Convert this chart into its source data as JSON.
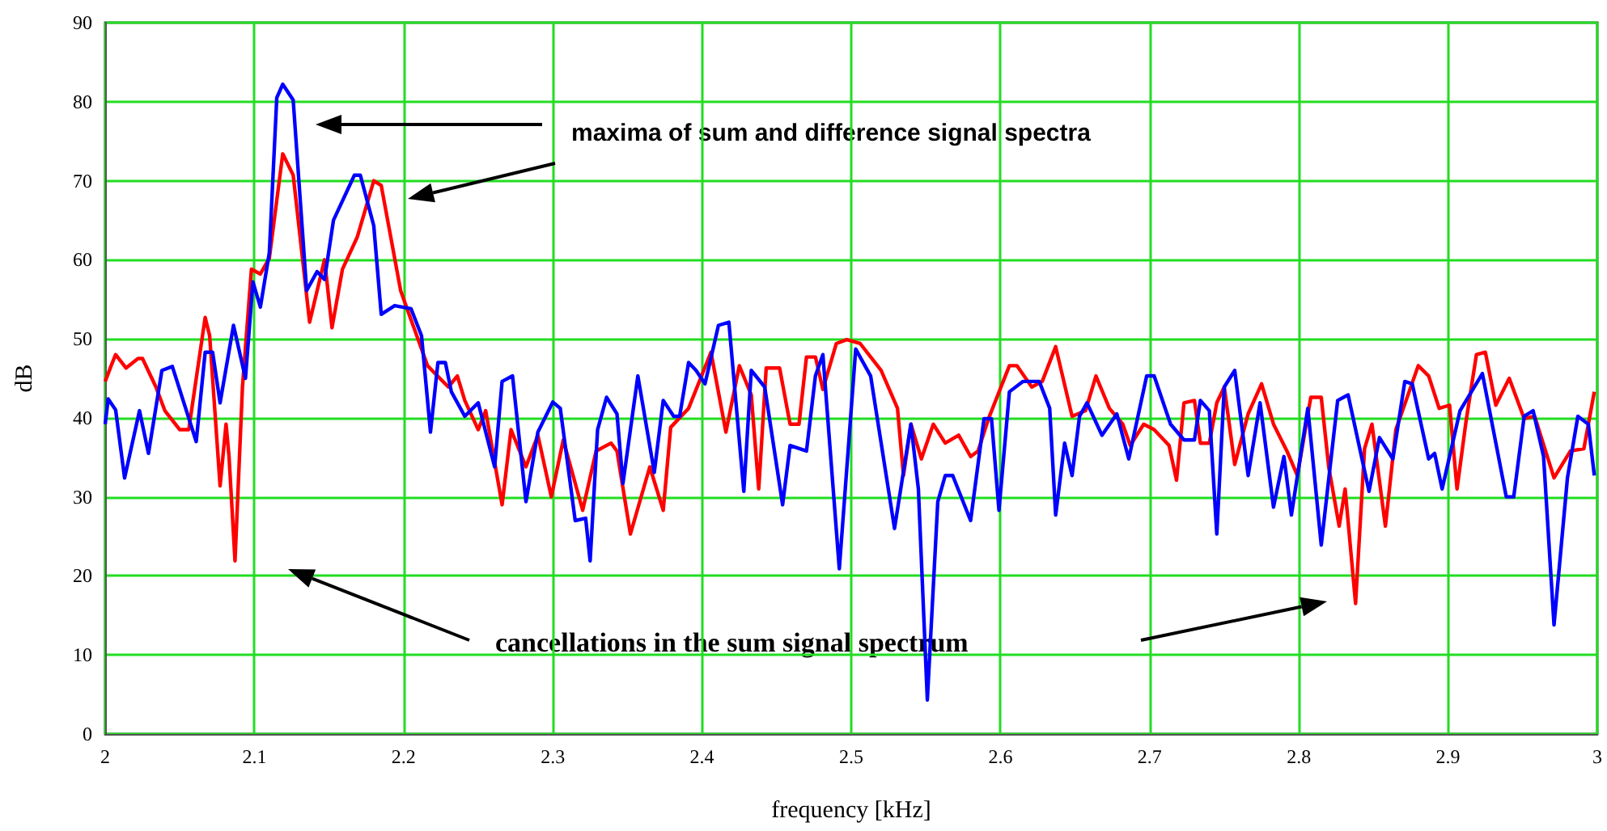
{
  "chart_data": {
    "type": "line",
    "xlabel": "frequency [kHz]",
    "ylabel": "dB",
    "annotations": [
      "maxima of sum and difference signal spectra",
      "cancellations in the sum signal spectrum"
    ],
    "xlim": [
      2,
      3
    ],
    "xticks": [
      2,
      2.1,
      2.2,
      2.3,
      2.4,
      2.5,
      2.6,
      2.7,
      2.8,
      2.9,
      3
    ],
    "ylim": [
      0,
      90
    ],
    "yticks": [
      0,
      10,
      20,
      30,
      40,
      50,
      60,
      70,
      80,
      90
    ],
    "grid": true,
    "marker": "none",
    "line_style": "solid",
    "series": [
      {
        "color": "#ff0000",
        "x": [
          2.0,
          2.004,
          2.007,
          2.014,
          2.022,
          2.025,
          2.034,
          2.04,
          2.05,
          2.056,
          2.067,
          2.07,
          2.077,
          2.081,
          2.083,
          2.087,
          2.092,
          2.098,
          2.104,
          2.11,
          2.119,
          2.126,
          2.137,
          2.147,
          2.152,
          2.159,
          2.169,
          2.18,
          2.185,
          2.198,
          2.205,
          2.216,
          2.23,
          2.236,
          2.241,
          2.25,
          2.255,
          2.266,
          2.272,
          2.282,
          2.29,
          2.299,
          2.307,
          2.32,
          2.329,
          2.339,
          2.343,
          2.352,
          2.365,
          2.374,
          2.379,
          2.391,
          2.406,
          2.416,
          2.425,
          2.433,
          2.438,
          2.443,
          2.452,
          2.459,
          2.465,
          2.47,
          2.476,
          2.481,
          2.49,
          2.497,
          2.506,
          2.52,
          2.531,
          2.535,
          2.54,
          2.547,
          2.555,
          2.563,
          2.572,
          2.58,
          2.585,
          2.592,
          2.606,
          2.611,
          2.621,
          2.628,
          2.637,
          2.648,
          2.657,
          2.664,
          2.673,
          2.682,
          2.687,
          2.696,
          2.703,
          2.713,
          2.718,
          2.723,
          2.73,
          2.734,
          2.74,
          2.745,
          2.75,
          2.757,
          2.766,
          2.775,
          2.783,
          2.792,
          2.799,
          2.808,
          2.815,
          2.82,
          2.827,
          2.831,
          2.838,
          2.844,
          2.849,
          2.858,
          2.865,
          2.88,
          2.887,
          2.894,
          2.901,
          2.906,
          2.912,
          2.919,
          2.925,
          2.932,
          2.941,
          2.951,
          2.958,
          2.971,
          2.982,
          2.991,
          2.998
        ],
        "values": [
          44.6,
          46.6,
          48,
          46.3,
          47.5,
          47.5,
          43.9,
          40.9,
          38.5,
          38.5,
          52.7,
          50.4,
          31.4,
          39.2,
          35.1,
          21.9,
          43.9,
          58.8,
          58.2,
          60.2,
          73.4,
          70.7,
          52.1,
          60,
          51.4,
          58.8,
          62.9,
          70,
          69.4,
          56.1,
          52.4,
          46.6,
          43.9,
          45.3,
          42.2,
          38.5,
          40.9,
          29,
          38.5,
          33.8,
          37.8,
          30,
          37.2,
          28.3,
          35.8,
          36.8,
          35.8,
          25.3,
          33.8,
          28.3,
          38.8,
          41.2,
          48.3,
          38.2,
          46.6,
          42.9,
          31,
          46.3,
          46.3,
          39.2,
          39.2,
          47.7,
          47.7,
          43.6,
          49.4,
          49.9,
          49.4,
          46,
          41.2,
          32.7,
          39.2,
          34.8,
          39.2,
          36.8,
          37.8,
          35.1,
          35.8,
          39.9,
          46.6,
          46.6,
          43.9,
          44.6,
          49,
          40.2,
          40.9,
          45.3,
          41.2,
          39.2,
          36.5,
          39.2,
          38.5,
          36.5,
          32.1,
          41.9,
          42.2,
          36.8,
          36.8,
          41.9,
          43.9,
          34.1,
          40.5,
          44.3,
          39.2,
          35.8,
          32.7,
          42.6,
          42.6,
          33.8,
          26.3,
          31,
          16.5,
          36.1,
          39.2,
          26.3,
          38.5,
          46.6,
          45.3,
          41.2,
          41.6,
          31,
          39.5,
          48,
          48.3,
          41.6,
          45,
          39.9,
          40.2,
          32.4,
          35.8,
          36.1,
          43.3
        ]
      },
      {
        "color": "#0000ff",
        "x": [
          2.0,
          2.002,
          2.007,
          2.013,
          2.023,
          2.029,
          2.038,
          2.045,
          2.061,
          2.067,
          2.072,
          2.077,
          2.086,
          2.094,
          2.099,
          2.104,
          2.11,
          2.115,
          2.119,
          2.126,
          2.135,
          2.142,
          2.147,
          2.153,
          2.167,
          2.171,
          2.18,
          2.185,
          2.194,
          2.205,
          2.212,
          2.218,
          2.223,
          2.228,
          2.232,
          2.241,
          2.25,
          2.261,
          2.266,
          2.273,
          2.282,
          2.29,
          2.3,
          2.305,
          2.315,
          2.322,
          2.325,
          2.33,
          2.336,
          2.343,
          2.347,
          2.357,
          2.368,
          2.374,
          2.381,
          2.385,
          2.391,
          2.396,
          2.402,
          2.411,
          2.418,
          2.428,
          2.433,
          2.442,
          2.454,
          2.459,
          2.47,
          2.476,
          2.481,
          2.492,
          2.503,
          2.513,
          2.529,
          2.54,
          2.545,
          2.551,
          2.558,
          2.563,
          2.568,
          2.58,
          2.589,
          2.594,
          2.599,
          2.606,
          2.615,
          2.626,
          2.633,
          2.637,
          2.643,
          2.648,
          2.653,
          2.658,
          2.668,
          2.678,
          2.686,
          2.698,
          2.703,
          2.714,
          2.723,
          2.73,
          2.734,
          2.74,
          2.745,
          2.75,
          2.757,
          2.766,
          2.774,
          2.783,
          2.79,
          2.795,
          2.806,
          2.815,
          2.826,
          2.833,
          2.847,
          2.854,
          2.863,
          2.871,
          2.876,
          2.887,
          2.891,
          2.896,
          2.908,
          2.923,
          2.939,
          2.944,
          2.951,
          2.957,
          2.964,
          2.971,
          2.98,
          2.987,
          2.994,
          2.998
        ],
        "values": [
          39.2,
          42.4,
          41,
          32.4,
          40.9,
          35.5,
          46,
          46.5,
          37,
          48.3,
          48.3,
          41.9,
          51.7,
          45,
          57.2,
          54,
          60.9,
          80.5,
          82.2,
          80.2,
          56.1,
          58.5,
          57.5,
          65,
          70.7,
          70.7,
          64.3,
          53.1,
          54.2,
          53.8,
          50.4,
          38.2,
          47,
          47,
          43.3,
          40.2,
          41.9,
          33.8,
          44.6,
          45.3,
          29.4,
          38.2,
          42,
          41.2,
          27,
          27.3,
          21.9,
          38.5,
          42.6,
          40.5,
          31.7,
          45.3,
          33.1,
          42.2,
          40.2,
          40.2,
          47,
          46,
          44.3,
          51.7,
          52.1,
          30.7,
          46,
          43.9,
          29,
          36.5,
          35.8,
          45.3,
          48,
          20.9,
          48.7,
          45.3,
          26,
          39.2,
          31,
          4.3,
          29.4,
          32.7,
          32.7,
          27,
          39.9,
          39.9,
          28.3,
          43.3,
          44.6,
          44.6,
          41.2,
          27.7,
          36.8,
          32.7,
          40.2,
          41.9,
          37.8,
          40.5,
          34.8,
          45.3,
          45.3,
          39.2,
          37.2,
          37.2,
          42.2,
          40.9,
          25.3,
          43.9,
          46,
          32.7,
          41.9,
          28.7,
          35.1,
          27.7,
          41.2,
          23.9,
          42.2,
          42.9,
          30.7,
          37.5,
          34.8,
          44.6,
          44.3,
          34.8,
          35.5,
          31,
          40.9,
          45.6,
          30,
          30,
          40.2,
          40.9,
          35.1,
          13.8,
          32.4,
          40.2,
          39.2,
          32.7
        ]
      }
    ]
  }
}
